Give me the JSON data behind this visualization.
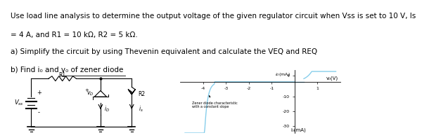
{
  "title_line1": "Use load line analysis to determine the output voltage of the given regulator circuit when Vss is set to 10 V, Is",
  "title_line2": "= 4 A, and R1 = 10 kΩ, R2 = 5 kΩ.",
  "line_a": "a) Simplify the circuit by using Thevenin equivalent and calculate the VEQ and REQ",
  "line_b": "b) Find i₀ and v₀ of zener diode",
  "background": "#ffffff",
  "text_color": "#000000",
  "font_size_main": 7.5,
  "zener_label": "Zener diode characteristic\nwith a constant slope",
  "graph_xlabel": "v₀(V)",
  "graph_ylabel": "i₀(mA)",
  "curve_color": "#87CEEB"
}
